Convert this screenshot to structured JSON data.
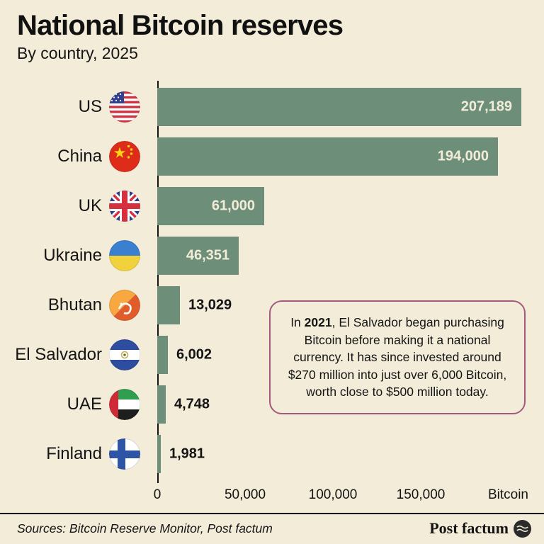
{
  "header": {
    "title": "National Bitcoin reserves",
    "subtitle": "By country, 2025"
  },
  "chart_data": {
    "type": "bar",
    "orientation": "horizontal",
    "title": "National Bitcoin reserves",
    "subtitle": "By country, 2025",
    "categories": [
      "US",
      "China",
      "UK",
      "Ukraine",
      "Bhutan",
      "El Salvador",
      "UAE",
      "Finland"
    ],
    "values": [
      207189,
      194000,
      61000,
      46351,
      13029,
      6002,
      4748,
      1981
    ],
    "value_labels": [
      "207,189",
      "194,000",
      "61,000",
      "46,351",
      "13,029",
      "6,002",
      "4,748",
      "1,981"
    ],
    "flag_icons": [
      "us-flag-icon",
      "china-flag-icon",
      "uk-flag-icon",
      "ukraine-flag-icon",
      "bhutan-flag-icon",
      "el-salvador-flag-icon",
      "uae-flag-icon",
      "finland-flag-icon"
    ],
    "xlim": [
      0,
      207189
    ],
    "ticks": [
      0,
      50000,
      100000,
      150000
    ],
    "tick_labels": [
      "0",
      "50,000",
      "100,000",
      "150,000"
    ],
    "x_axis_unit": "Bitcoin",
    "inside_label_threshold": 40000,
    "bar_color": "#6d8f7a",
    "background_color": "#f2ecd8",
    "grid": false,
    "legend": false
  },
  "annotation": {
    "prefix": "In ",
    "bold": "2021",
    "text": ", El Salvador began purchasing Bitcoin before making it a national currency. It has since invested around $270 million into just over 6,000 Bitcoin, worth close to $500 million today."
  },
  "footer": {
    "sources": "Sources: Bitcoin Reserve Monitor, Post factum",
    "brand": "Post factum"
  }
}
